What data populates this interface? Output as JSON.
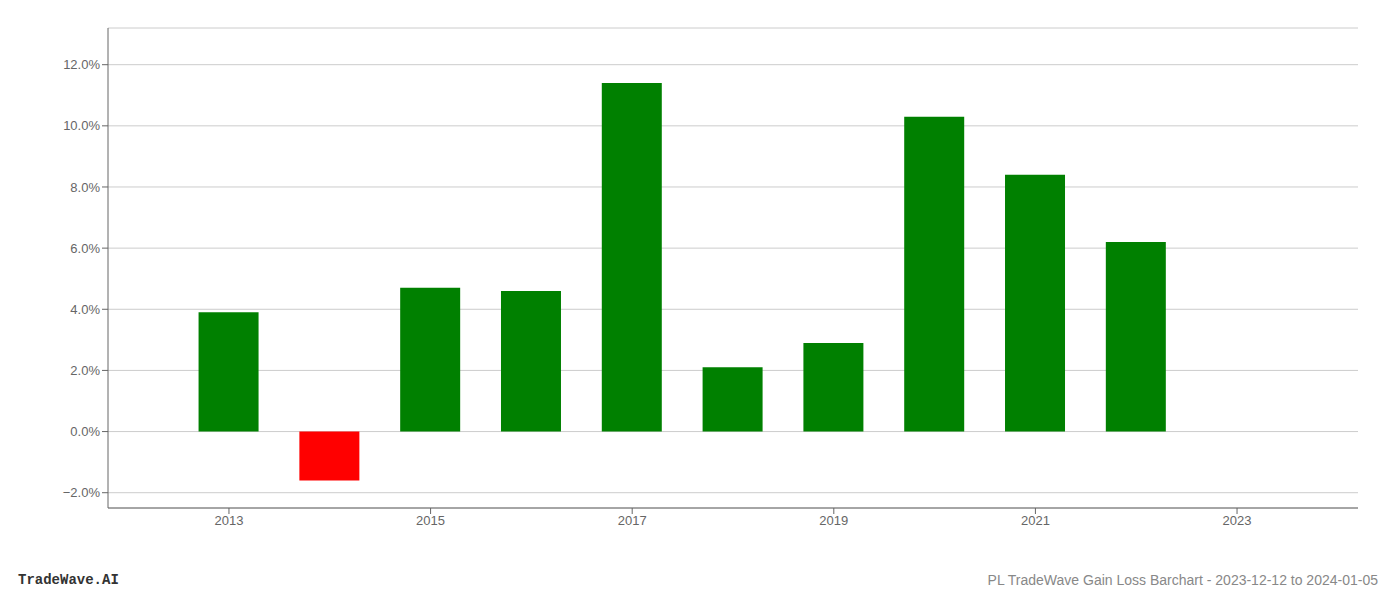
{
  "chart_data": {
    "type": "bar",
    "x": [
      2013,
      2014,
      2015,
      2016,
      2017,
      2018,
      2019,
      2020,
      2021,
      2022
    ],
    "values": [
      0.039,
      -0.016,
      0.047,
      0.046,
      0.114,
      0.021,
      0.029,
      0.103,
      0.084,
      0.062
    ],
    "colors": [
      "#008000",
      "#ff0000",
      "#008000",
      "#008000",
      "#008000",
      "#008000",
      "#008000",
      "#008000",
      "#008000",
      "#008000"
    ],
    "xlim": [
      2011.8,
      2024.2
    ],
    "xticks": [
      2013,
      2015,
      2017,
      2019,
      2021,
      2023
    ],
    "ylim": [
      -0.025,
      0.132
    ],
    "yticks": [
      {
        "value": -0.02,
        "label": "−2.0%"
      },
      {
        "value": 0.0,
        "label": "0.0%"
      },
      {
        "value": 0.02,
        "label": "2.0%"
      },
      {
        "value": 0.04,
        "label": "4.0%"
      },
      {
        "value": 0.06,
        "label": "6.0%"
      },
      {
        "value": 0.08,
        "label": "8.0%"
      },
      {
        "value": 0.1,
        "label": "10.0%"
      },
      {
        "value": 0.12,
        "label": "12.0%"
      }
    ],
    "grid": true,
    "annotations": [
      "TradeWave.AI",
      "PL TradeWave Gain Loss Barchart - 2023-12-12 to 2024-01-05"
    ]
  }
}
